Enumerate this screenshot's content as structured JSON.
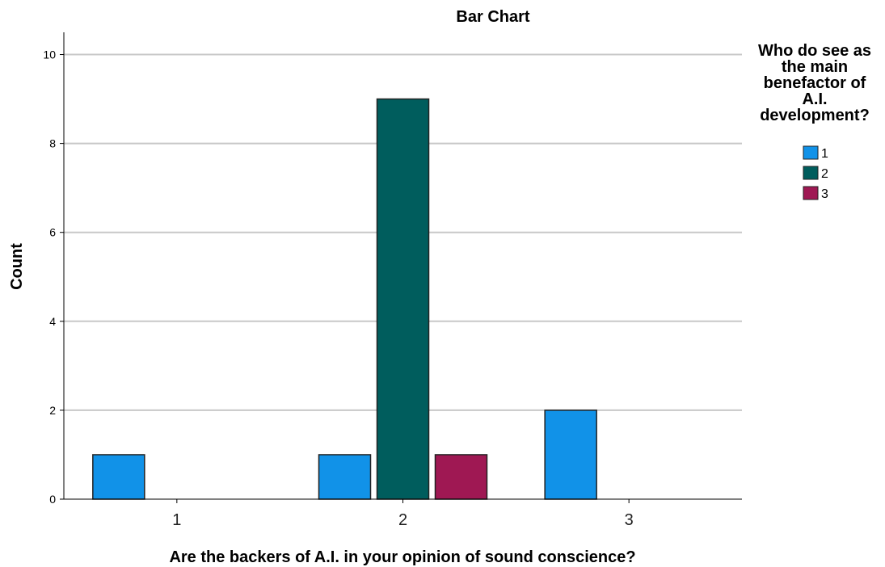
{
  "chart_data": {
    "type": "bar",
    "title": "Bar Chart",
    "xlabel": "Are the backers of A.I. in your opinion of sound conscience?",
    "ylabel": "Count",
    "categories": [
      "1",
      "2",
      "3"
    ],
    "ylim": [
      0,
      10
    ],
    "yticks": [
      0,
      2,
      4,
      6,
      8,
      10
    ],
    "grid": true,
    "legend_placement": "top-right",
    "legend_title": [
      "Who do see as",
      "the main",
      "benefactor of",
      "A.I.",
      "development?"
    ],
    "series": [
      {
        "name": "1",
        "color": "#1192e8",
        "values": [
          1,
          1,
          2
        ]
      },
      {
        "name": "2",
        "color": "#005d5d",
        "values": [
          0,
          9,
          0
        ]
      },
      {
        "name": "3",
        "color": "#9f1853",
        "values": [
          0,
          1,
          0
        ]
      }
    ]
  }
}
